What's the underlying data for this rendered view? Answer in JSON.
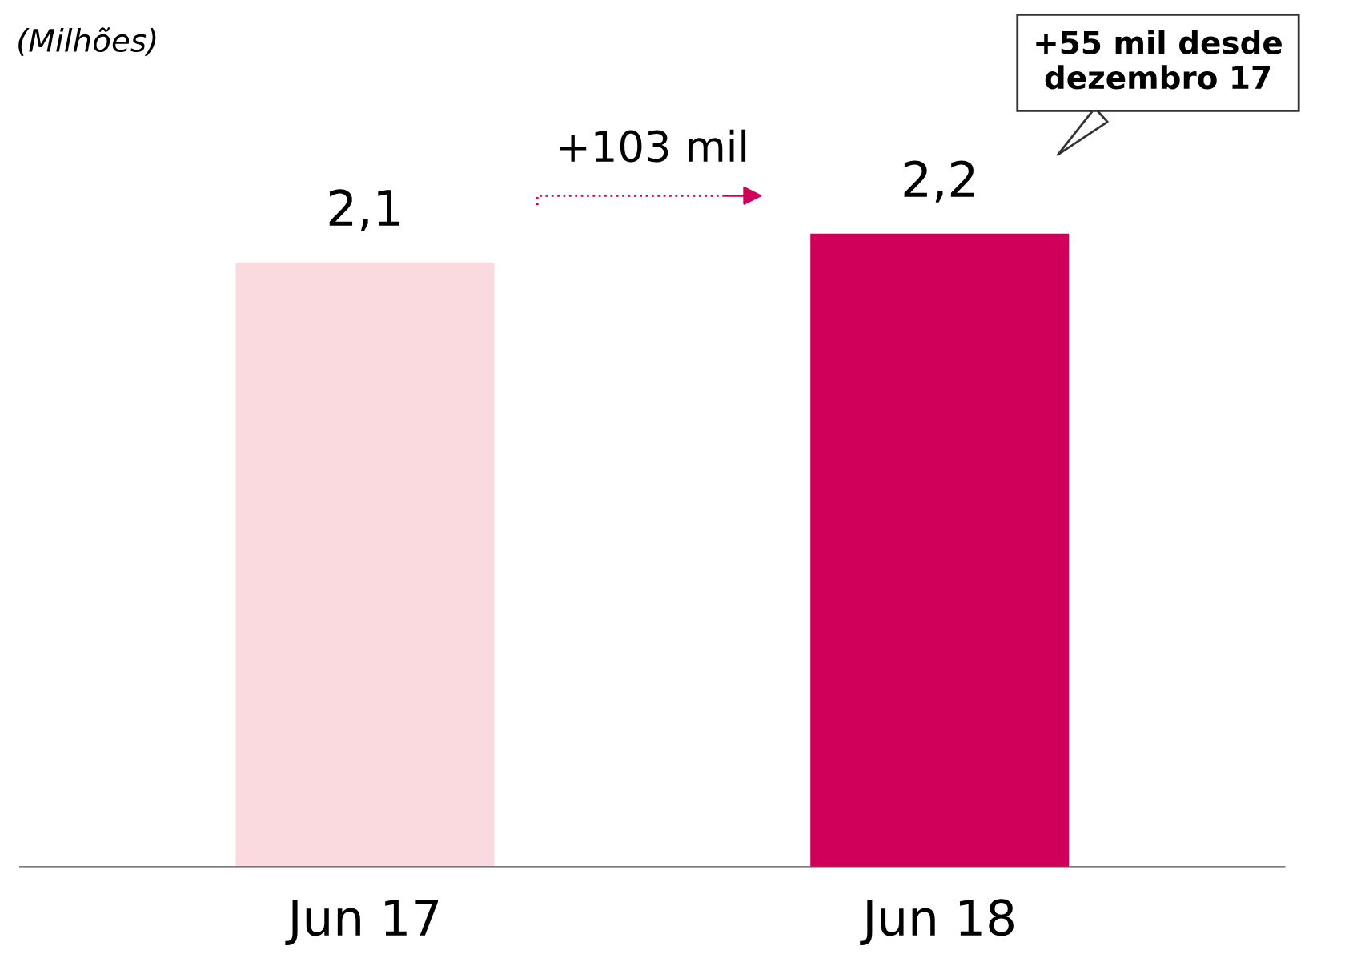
{
  "chart_data": {
    "type": "bar",
    "categories": [
      "Jun 17",
      "Jun 18"
    ],
    "values": [
      2.1,
      2.2
    ],
    "colors": [
      "#fadadf",
      "#d0005a"
    ],
    "value_labels": [
      "2,1",
      "2,2"
    ],
    "annotations": [
      "(Milhões)",
      "+103 mil",
      "+55 mil desde dezembro 17"
    ]
  }
}
